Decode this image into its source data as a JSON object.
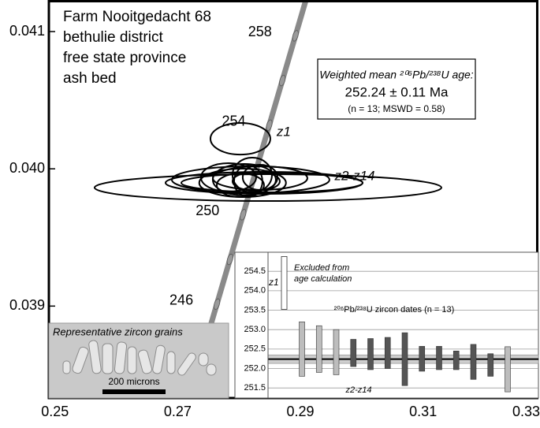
{
  "chart_data": [
    {
      "type": "concordia",
      "annotation_lines": [
        "Farm Nooitgedacht 68",
        "bethulie district",
        "free state province",
        "ash bed"
      ],
      "xlim": [
        0.249,
        0.3288
      ],
      "ylim": [
        0.03833,
        0.04123
      ],
      "xticks": [
        0.25,
        0.27,
        0.29,
        0.31,
        0.33
      ],
      "yticks": [
        0.039,
        {
          "value": 0.04,
          "label": "0.040"
        },
        0.041
      ],
      "concordia": {
        "x": [
          0.2719,
          0.2909
        ],
        "y": [
          0.03833,
          0.04123
        ],
        "ages": [
          241.8,
          259.6
        ],
        "color": "#8a8a8a"
      },
      "age_markers": [
        244,
        246,
        248,
        250,
        252,
        254,
        256,
        258
      ],
      "age_labels": [
        246,
        250,
        254,
        258
      ],
      "ellipse_groups": [
        {
          "name": "z1",
          "cx": [
            0.28022
          ],
          "cy": [
            0.040219
          ],
          "rx": [
            0.00488
          ],
          "ry": [
            0.000115
          ]
        },
        {
          "name": "z2-z14",
          "cx": [
            0.28472,
            0.28408,
            0.28189,
            0.28343,
            0.28058,
            0.28086,
            0.28215,
            0.28279,
            0.27829,
            0.28536,
            0.28022,
            0.2815,
            0.28343
          ],
          "cy": [
            0.039863,
            0.039898,
            0.039921,
            0.039932,
            0.039898,
            0.039921,
            0.039955,
            0.039909,
            0.039938,
            0.039898,
            0.039881,
            0.039909,
            0.039938
          ],
          "rx": [
            0.02827,
            0.01606,
            0.01285,
            0.00771,
            0.00707,
            0.00514,
            0.00321,
            0.00385,
            0.0045,
            0.01478,
            0.00385,
            0.00231,
            0.00283
          ],
          "ry": [
            9.76e-05,
            8.04e-05,
            9.76e-05,
            8.61e-05,
            0.0001034,
            0.0001149,
            0.0001263,
            6.89e-05,
            0.0001034,
            6.89e-05,
            8.61e-05,
            0.0001149,
            9.19e-05
          ]
        }
      ],
      "mean_box": {
        "title": "Weighted mean ²⁰⁶Pb/²³⁸U age:",
        "value": 252.24,
        "error": 0.11,
        "label": "252.24 ± 0.11 Ma",
        "note": "(n = 13; MSWD = 0.58)"
      },
      "photo_inset": {
        "title": "Representative zircon grains",
        "scale_label": "200 microns"
      }
    },
    {
      "type": "errorbar",
      "title": "²⁰⁶Pb/²³⁸U zircon dates (n = 13)",
      "ylim": [
        251.24,
        254.99
      ],
      "yticks": [
        254.5,
        {
          "value": 254,
          "label": "254.0"
        },
        253.5,
        {
          "value": 253,
          "label": "253.0"
        },
        252.5,
        {
          "value": 252,
          "label": "252.0"
        },
        251.5
      ],
      "grid": true,
      "excluded": {
        "name": "z1",
        "value": 254.2,
        "error": 0.68,
        "note": [
          "Excluded from",
          "age calculation"
        ]
      },
      "series": {
        "name": "z2-z14",
        "values": [
          252.5,
          252.5,
          252.42,
          252.4,
          252.37,
          252.4,
          252.24,
          252.25,
          252.27,
          252.21,
          252.17,
          252.09,
          251.98
        ],
        "errors": [
          0.7,
          0.6,
          0.58,
          0.35,
          0.4,
          0.4,
          0.68,
          0.32,
          0.3,
          0.24,
          0.45,
          0.29,
          0.58
        ],
        "colors": [
          "#bdbdbd",
          "#bdbdbd",
          "#bdbdbd",
          "#555555",
          "#555555",
          "#555555",
          "#555555",
          "#555555",
          "#555555",
          "#555555",
          "#555555",
          "#555555",
          "#bdbdbd"
        ]
      }
    }
  ]
}
